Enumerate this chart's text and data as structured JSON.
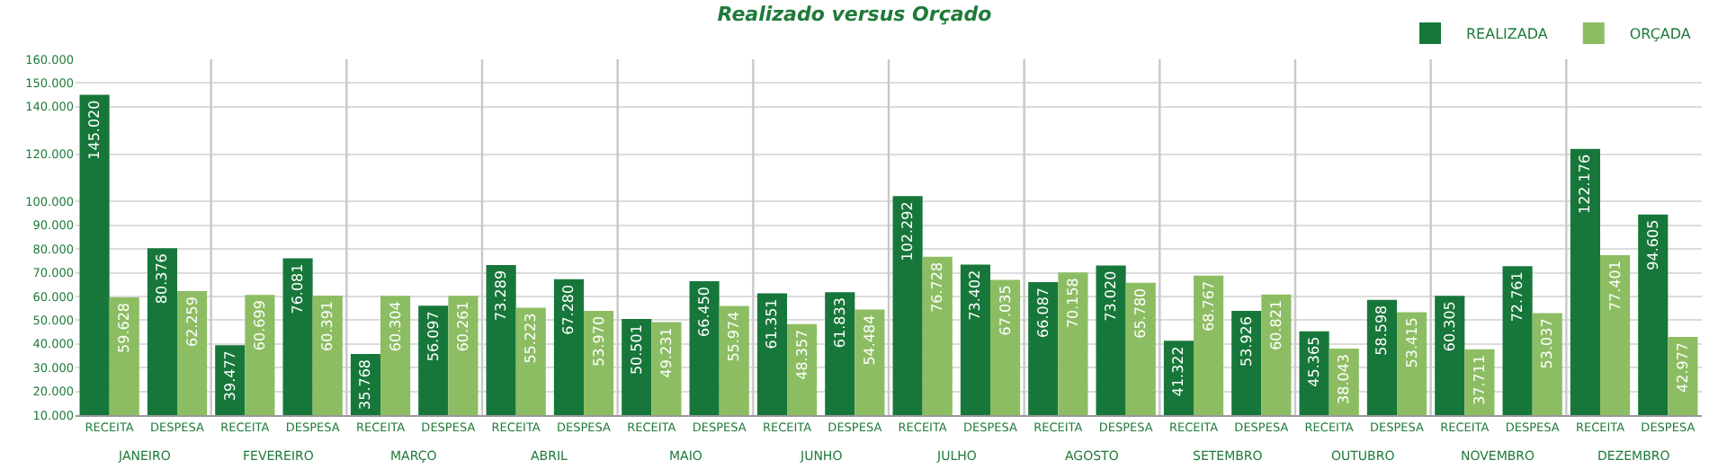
{
  "chart_data": {
    "type": "bar",
    "title": "Realizado versus Orçado",
    "categories": [
      "RECEITA",
      "DESPESA",
      "RECEITA",
      "DESPESA",
      "RECEITA",
      "DESPESA",
      "RECEITA",
      "DESPESA",
      "RECEITA",
      "DESPESA",
      "RECEITA",
      "DESPESA",
      "RECEITA",
      "DESPESA",
      "RECEITA",
      "DESPESA",
      "RECEITA",
      "DESPESA",
      "RECEITA",
      "DESPESA",
      "RECEITA",
      "DESPESA",
      "RECEITA",
      "DESPESA"
    ],
    "annotations": [
      "JANEIRO",
      "FEVEREIRO",
      "MARÇO",
      "ABRIL",
      "MAIO",
      "JUNHO",
      "JULHO",
      "AGOSTO",
      "SETEMBRO",
      "OUTUBRO",
      "NOVEMBRO",
      "DEZEMBRO"
    ],
    "series": [
      {
        "name": "REALIZADA",
        "color": "#17773a",
        "values": [
          145020,
          80376,
          39477,
          76081,
          35768,
          56097,
          73289,
          67280,
          50501,
          66450,
          61351,
          61833,
          102292,
          73402,
          66087,
          73020,
          41322,
          53926,
          45365,
          58598,
          60305,
          72761,
          122176,
          94605
        ],
        "value_labels": [
          "145.020",
          "80.376",
          "39.477",
          "76.081",
          "35.768",
          "56.097",
          "73.289",
          "67.280",
          "50.501",
          "66.450",
          "61.351",
          "61.833",
          "102.292",
          "73.402",
          "66.087",
          "73.020",
          "41.322",
          "53.926",
          "45.365",
          "58.598",
          "60.305",
          "72.761",
          "122.176",
          "94.605"
        ]
      },
      {
        "name": "ORÇADA",
        "color": "#8dbd63",
        "values": [
          59628,
          62259,
          60699,
          60391,
          60304,
          60261,
          55223,
          53970,
          49231,
          55974,
          48357,
          54484,
          76728,
          67035,
          70158,
          65780,
          68767,
          60821,
          38043,
          53415,
          37711,
          53037,
          77401,
          42977
        ],
        "value_labels": [
          "59.628",
          "62.259",
          "60.699",
          "60.391",
          "60.304",
          "60.261",
          "55.223",
          "53.970",
          "49.231",
          "55.974",
          "48.357",
          "54.484",
          "76.728",
          "67.035",
          "70.158",
          "65.780",
          "68.767",
          "60.821",
          "38.043",
          "53.415",
          "37.711",
          "53.037",
          "77.401",
          "42.977"
        ]
      }
    ],
    "ylim": [
      10000,
      160000
    ],
    "yticks": [
      {
        "value": 10000,
        "label": "10.000"
      },
      {
        "value": 20000,
        "label": "20.000"
      },
      {
        "value": 30000,
        "label": "30.000"
      },
      {
        "value": 40000,
        "label": "40.000"
      },
      {
        "value": 50000,
        "label": "50.000"
      },
      {
        "value": 60000,
        "label": "60.000"
      },
      {
        "value": 70000,
        "label": "70.000"
      },
      {
        "value": 80000,
        "label": "80.000"
      },
      {
        "value": 90000,
        "label": "90.000"
      },
      {
        "value": 100000,
        "label": "100.000"
      },
      {
        "value": 120000,
        "label": "120.000"
      },
      {
        "value": 140000,
        "label": "140.000"
      },
      {
        "value": 150000,
        "label": "150.000"
      },
      {
        "value": 160000,
        "label": "160.000"
      }
    ],
    "grid": true,
    "legend": "top right"
  }
}
